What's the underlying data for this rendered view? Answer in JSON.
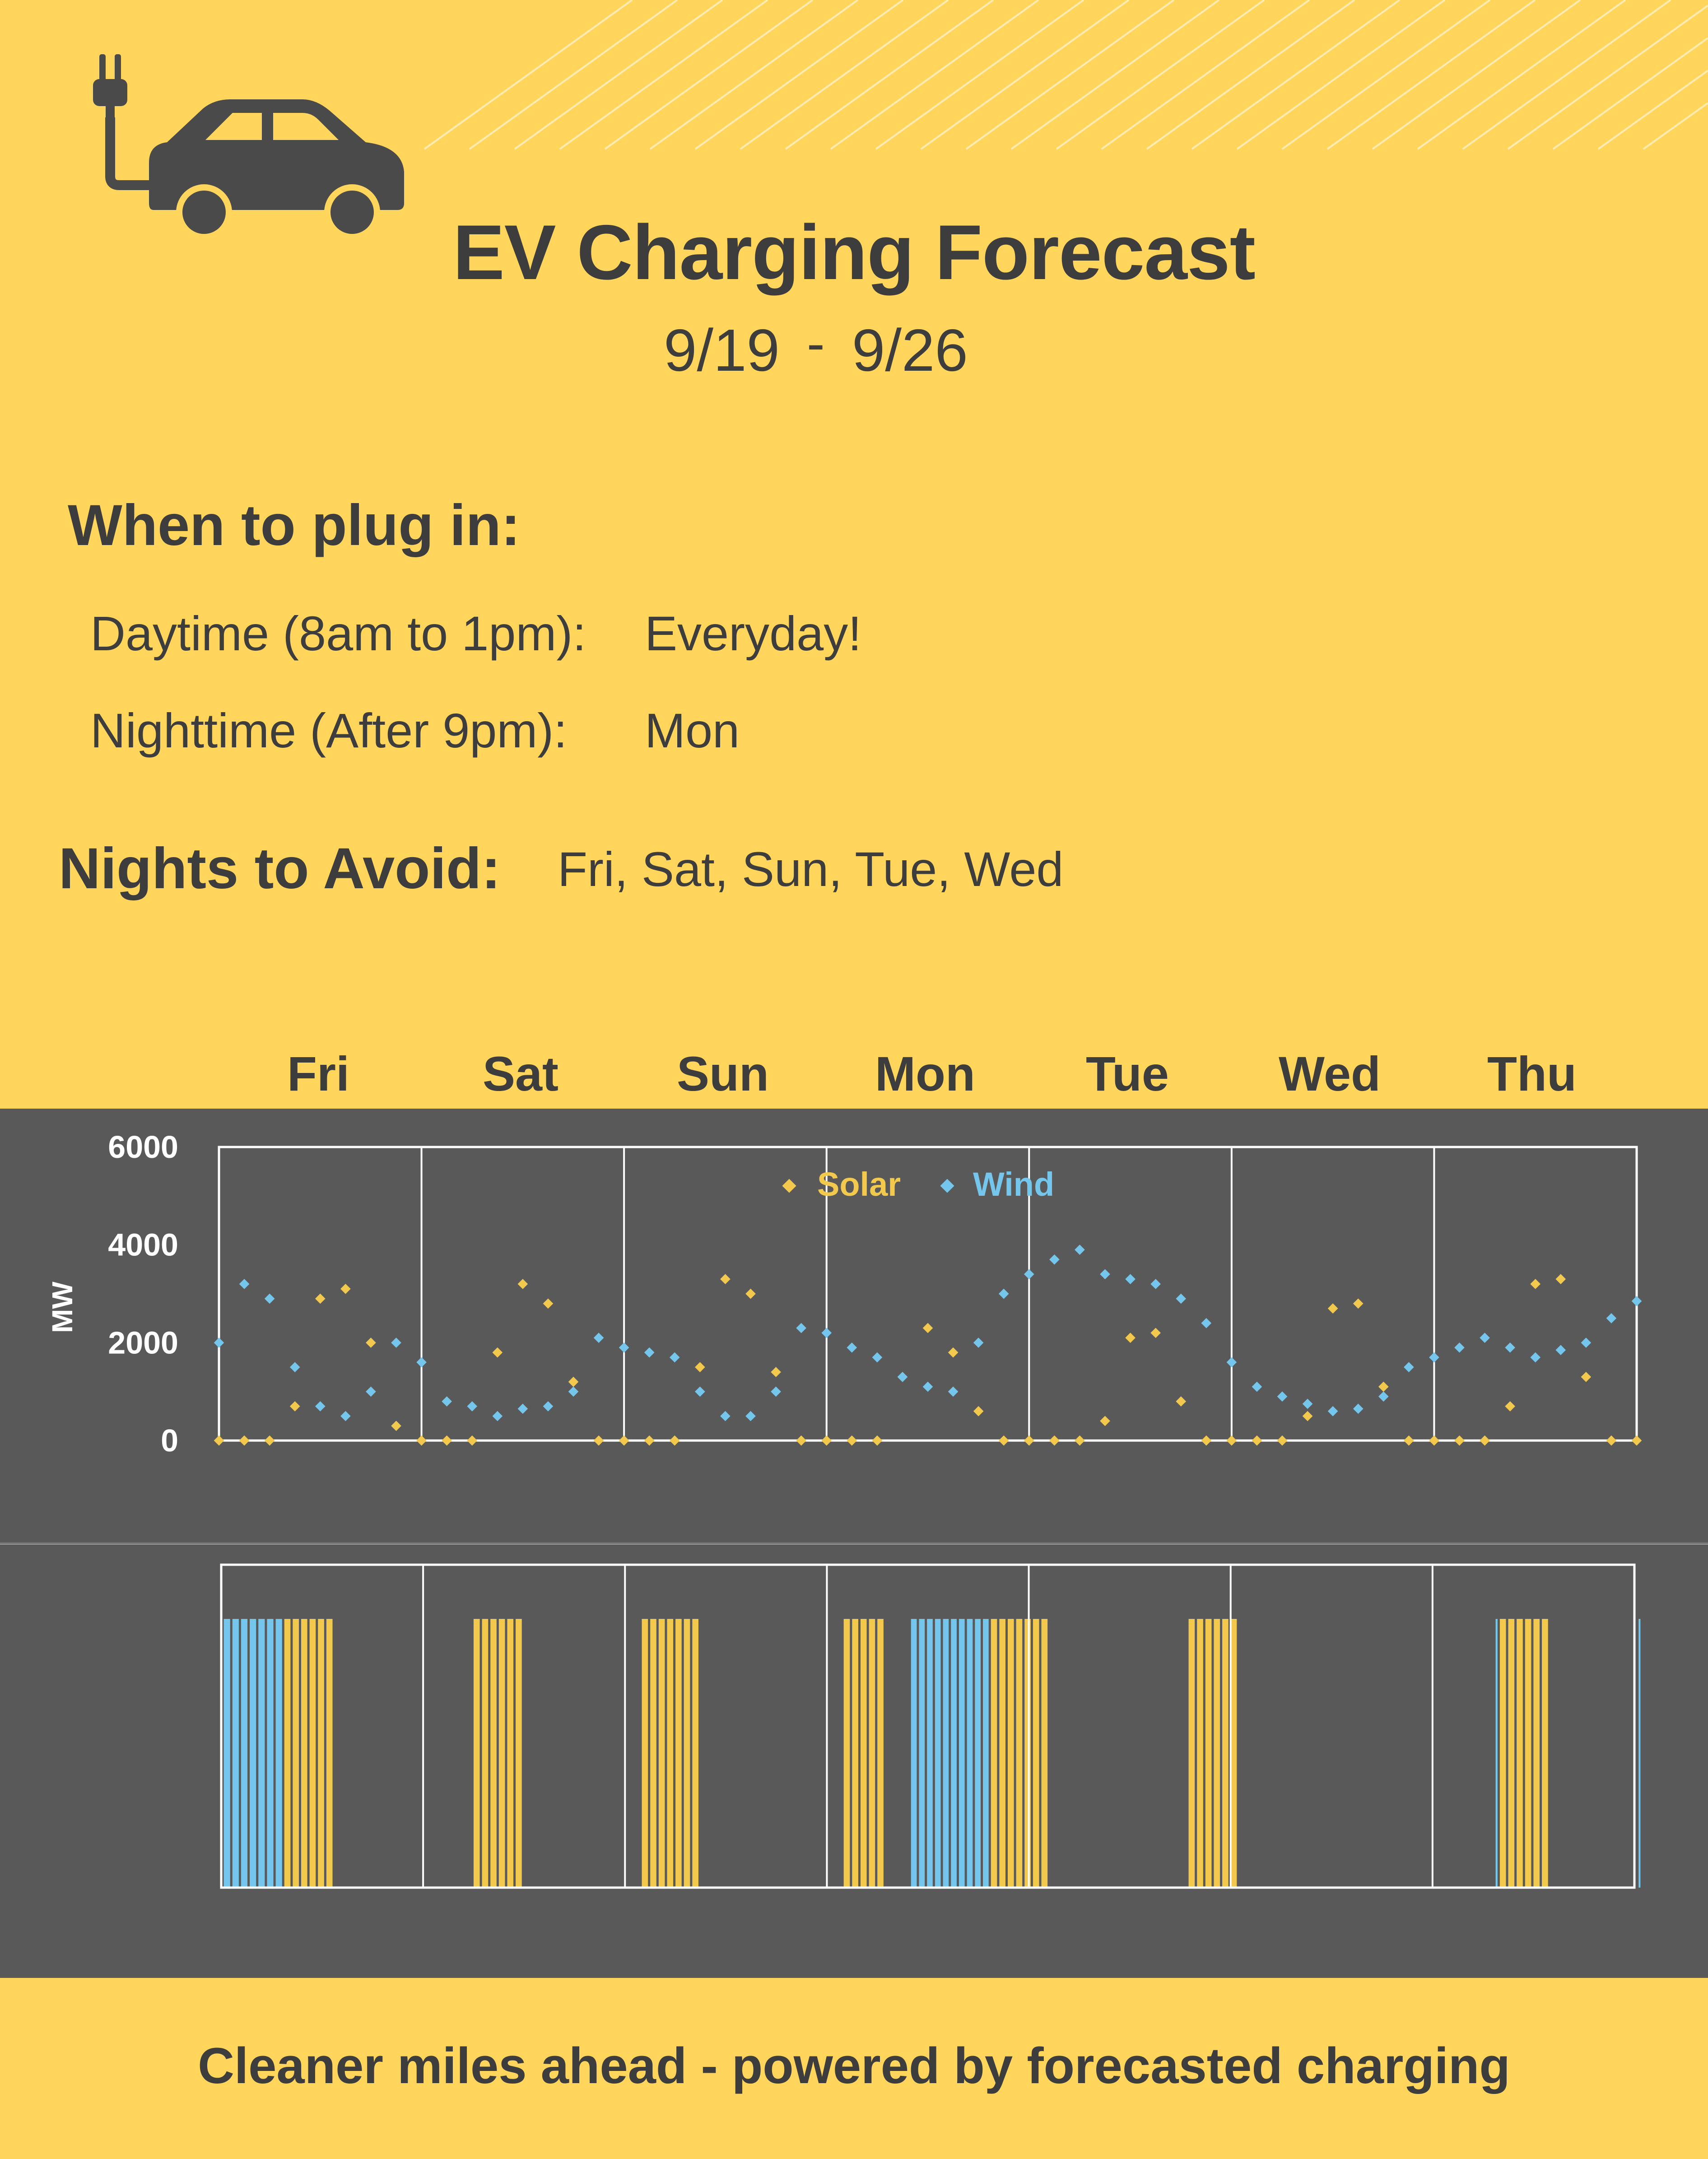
{
  "header": {
    "title": "EV Charging Forecast",
    "date_start": "9/19",
    "date_sep": "-",
    "date_end": "9/26"
  },
  "plug_in": {
    "heading": "When to plug in:",
    "daytime_label": "Daytime (8am to 1pm):",
    "daytime_value": "Everyday!",
    "nighttime_label": "Nighttime  (After 9pm):",
    "nighttime_value": "Mon"
  },
  "avoid": {
    "heading": "Nights to Avoid:",
    "value": "Fri, Sat, Sun, Tue, Wed"
  },
  "footer": {
    "text": "Cleaner miles ahead - powered by forecasted charging"
  },
  "colors": {
    "background": "#FFD55C",
    "panel": "#595959",
    "solar": "#F2C94C",
    "wind": "#74C6EC",
    "text": "#3d3d3d"
  },
  "icons": [
    "ev-car-plug-icon"
  ],
  "chart_data": [
    {
      "type": "scatter",
      "title": "",
      "xlabel": "",
      "ylabel": "MW",
      "ylim": [
        0,
        6000
      ],
      "yticks": [
        0,
        2000,
        4000,
        6000
      ],
      "days": [
        "Fri",
        "Sat",
        "Sun",
        "Mon",
        "Tue",
        "Wed",
        "Thu"
      ],
      "grid": "vertical day separators",
      "legend": "top-center",
      "x_unit": "hour index (3-hour steps, 8 per day)",
      "series": [
        {
          "name": "Solar",
          "color": "#F2C94C",
          "x": [
            0,
            1,
            2,
            3,
            4,
            5,
            6,
            7,
            8,
            9,
            10,
            11,
            12,
            13,
            14,
            15,
            16,
            17,
            18,
            19,
            20,
            21,
            22,
            23,
            24,
            25,
            26,
            27,
            28,
            29,
            30,
            31,
            32,
            33,
            34,
            35,
            36,
            37,
            38,
            39,
            40,
            41,
            42,
            43,
            44,
            45,
            46,
            47,
            48,
            49,
            50,
            51,
            52,
            53,
            54,
            55,
            56
          ],
          "values": [
            0,
            0,
            0,
            700,
            2900,
            3100,
            2000,
            300,
            0,
            0,
            0,
            1800,
            3200,
            2800,
            1200,
            0,
            0,
            0,
            0,
            1500,
            3300,
            3000,
            1400,
            0,
            0,
            0,
            0,
            1300,
            2300,
            1800,
            600,
            0,
            0,
            0,
            0,
            400,
            2100,
            2200,
            800,
            0,
            0,
            0,
            0,
            500,
            2700,
            2800,
            1100,
            0,
            0,
            0,
            0,
            700,
            3200,
            3300,
            1300,
            0,
            0
          ]
        },
        {
          "name": "Wind",
          "color": "#74C6EC",
          "x": [
            0,
            1,
            2,
            3,
            4,
            5,
            6,
            7,
            8,
            9,
            10,
            11,
            12,
            13,
            14,
            15,
            16,
            17,
            18,
            19,
            20,
            21,
            22,
            23,
            24,
            25,
            26,
            27,
            28,
            29,
            30,
            31,
            32,
            33,
            34,
            35,
            36,
            37,
            38,
            39,
            40,
            41,
            42,
            43,
            44,
            45,
            46,
            47,
            48,
            49,
            50,
            51,
            52,
            53,
            54,
            55,
            56
          ],
          "values": [
            2000,
            3200,
            2900,
            1500,
            700,
            500,
            1000,
            2000,
            1600,
            800,
            700,
            500,
            650,
            700,
            1000,
            2100,
            1900,
            1800,
            1700,
            1000,
            500,
            500,
            1000,
            2300,
            2200,
            1900,
            1700,
            1300,
            1100,
            1000,
            2000,
            3000,
            3400,
            3700,
            3900,
            3400,
            3300,
            3200,
            2900,
            2400,
            1600,
            1100,
            900,
            750,
            600,
            650,
            900,
            1500,
            1700,
            1900,
            2100,
            1900,
            1700,
            1850,
            2000,
            2500,
            2850
          ]
        }
      ]
    },
    {
      "type": "bar",
      "title": "",
      "days": [
        "Fri",
        "Sat",
        "Sun",
        "Mon",
        "Tue",
        "Wed",
        "Thu"
      ],
      "x_unit": "hour of week (0-168)",
      "series": [
        {
          "name": "",
          "color": "#74C6EC",
          "ranges": [
            [
              0.3,
              7.5
            ],
            [
              82,
              91.5
            ],
            [
              151.5,
              152
            ],
            [
              168.5,
              169
            ]
          ]
        },
        {
          "name": "",
          "color": "#F2C94C",
          "ranges": [
            [
              7.5,
              13.5
            ],
            [
              30,
              36
            ],
            [
              50,
              57
            ],
            [
              74,
              79
            ],
            [
              91.5,
              98.5
            ],
            [
              115,
              121
            ],
            [
              152,
              158
            ]
          ]
        }
      ]
    }
  ]
}
